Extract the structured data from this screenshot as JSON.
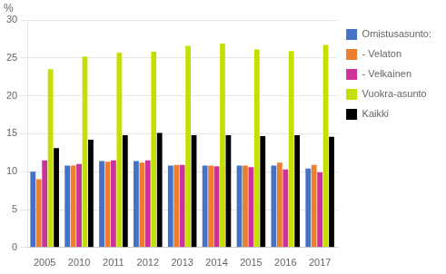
{
  "chart_data": {
    "type": "bar",
    "ylabel": "%",
    "categories": [
      "2005",
      "2010",
      "2011",
      "2012",
      "2013",
      "2014",
      "2015",
      "2016",
      "2017"
    ],
    "series": [
      {
        "name": "Omistusasunto:",
        "color": "#4472C4",
        "values": [
          10.0,
          10.8,
          11.4,
          11.4,
          10.8,
          10.8,
          10.8,
          10.8,
          10.4
        ]
      },
      {
        "name": "- Velaton",
        "color": "#ED7D31",
        "values": [
          9.0,
          10.8,
          11.3,
          11.2,
          10.9,
          10.8,
          10.8,
          11.2,
          10.9
        ]
      },
      {
        "name": "- Velkainen",
        "color": "#CC3399",
        "values": [
          11.5,
          11.0,
          11.5,
          11.5,
          10.9,
          10.7,
          10.6,
          10.3,
          9.9
        ]
      },
      {
        "name": "Vuokra-asunto",
        "color": "#C5E000",
        "values": [
          23.5,
          25.2,
          25.7,
          25.8,
          26.6,
          26.9,
          26.1,
          25.9,
          26.7
        ]
      },
      {
        "name": "Kaikki",
        "color": "#000000",
        "values": [
          13.1,
          14.2,
          14.8,
          15.1,
          14.8,
          14.8,
          14.7,
          14.8,
          14.6
        ]
      }
    ],
    "ylim": [
      0,
      30
    ],
    "yticks": [
      0,
      5,
      10,
      15,
      20,
      25,
      30
    ],
    "grid": true,
    "legend": "right"
  }
}
